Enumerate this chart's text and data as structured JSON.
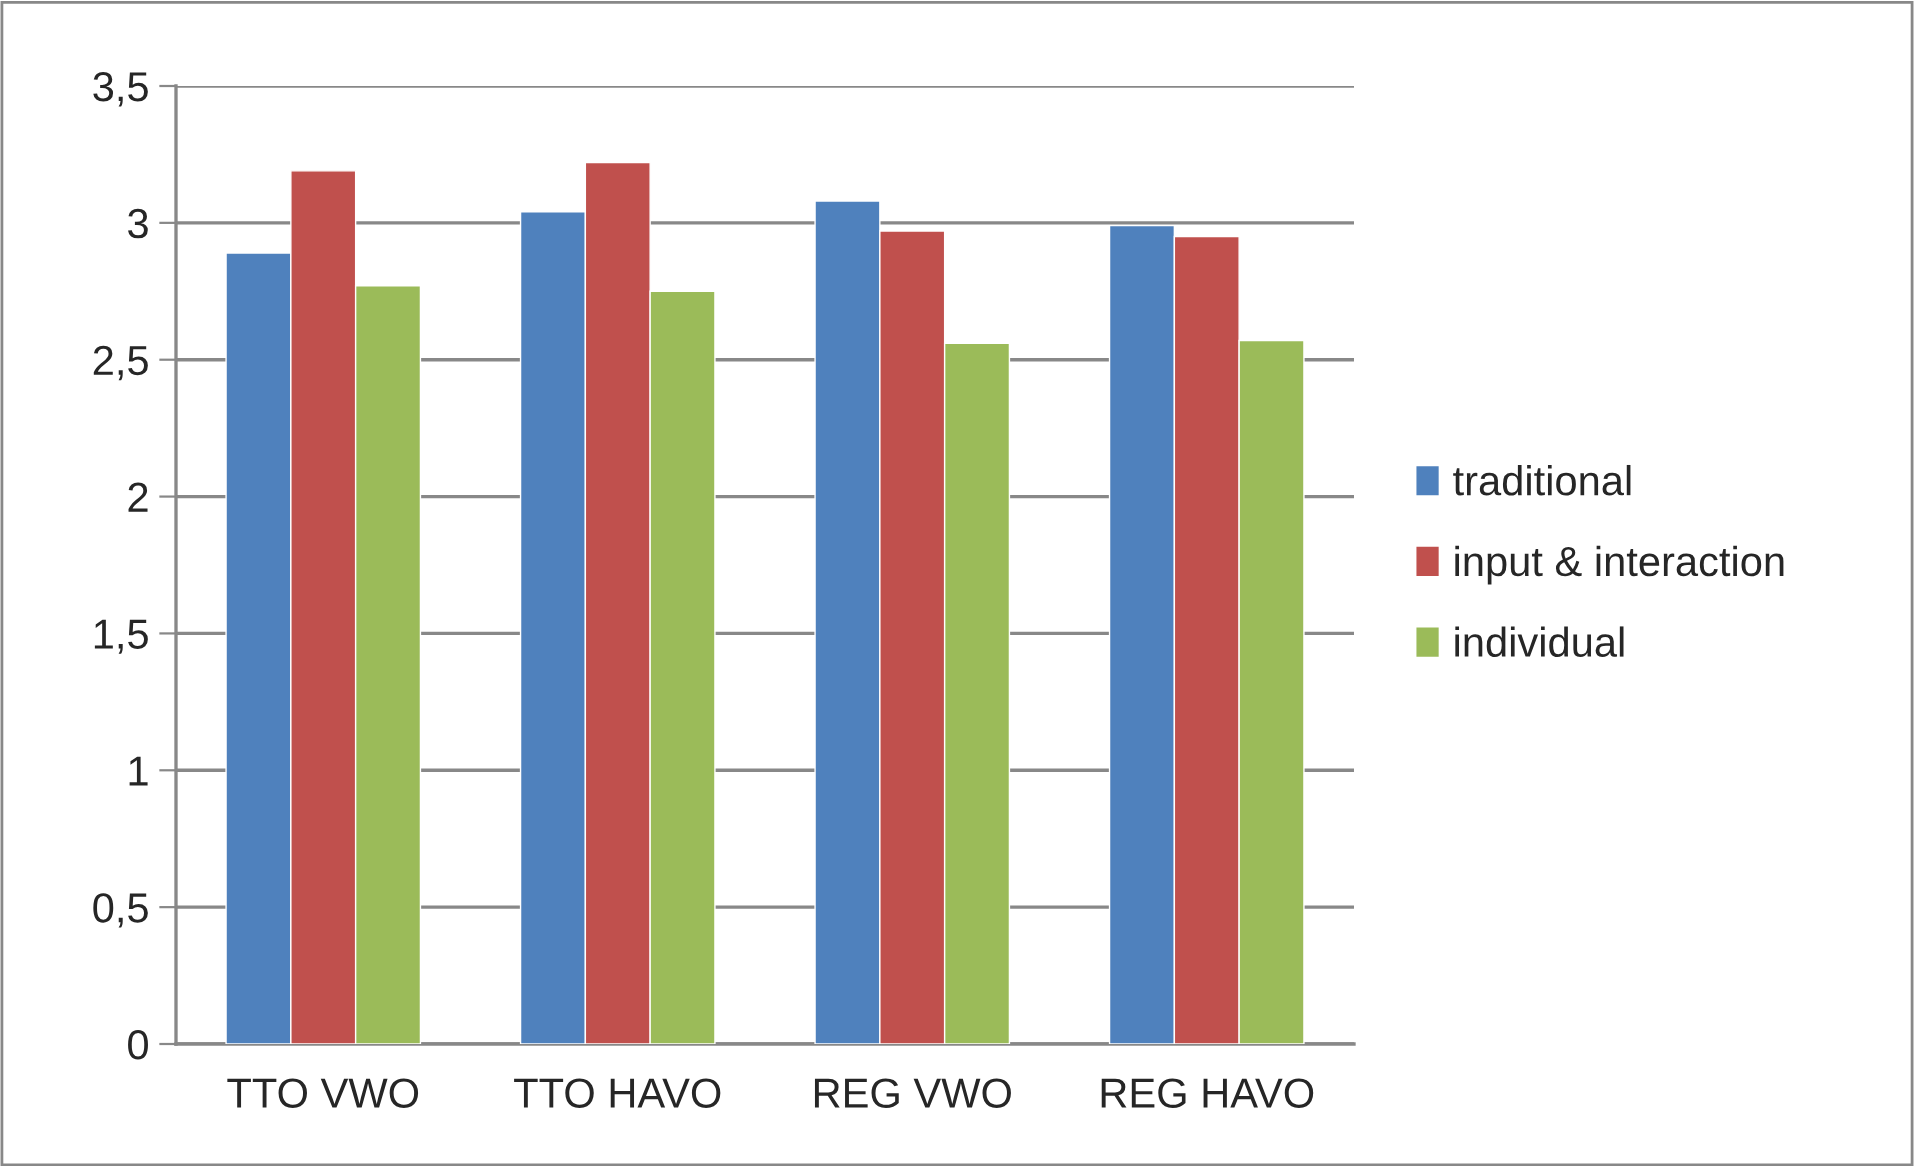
{
  "chart_data": {
    "type": "bar",
    "categories": [
      "TTO VWO",
      "TTO HAVO",
      "REG VWO",
      "REG HAVO"
    ],
    "series": [
      {
        "name": "traditional",
        "color": "#4f81bd",
        "values": [
          2.89,
          3.04,
          3.08,
          2.99
        ]
      },
      {
        "name": "input & interaction",
        "color": "#c0504d",
        "values": [
          3.19,
          3.22,
          2.97,
          2.95
        ]
      },
      {
        "name": "individual",
        "color": "#9bbb59",
        "values": [
          2.77,
          2.75,
          2.56,
          2.57
        ]
      }
    ],
    "ylim": [
      0,
      3.5
    ],
    "yticks": [
      0,
      {
        "value": 0.5,
        "label": "0,5"
      },
      1,
      {
        "value": 1.5,
        "label": "1,5"
      },
      2,
      {
        "value": 2.5,
        "label": "2,5"
      },
      3,
      {
        "value": 3.5,
        "label": "3,5"
      }
    ],
    "grid": "y",
    "legend": "right"
  }
}
